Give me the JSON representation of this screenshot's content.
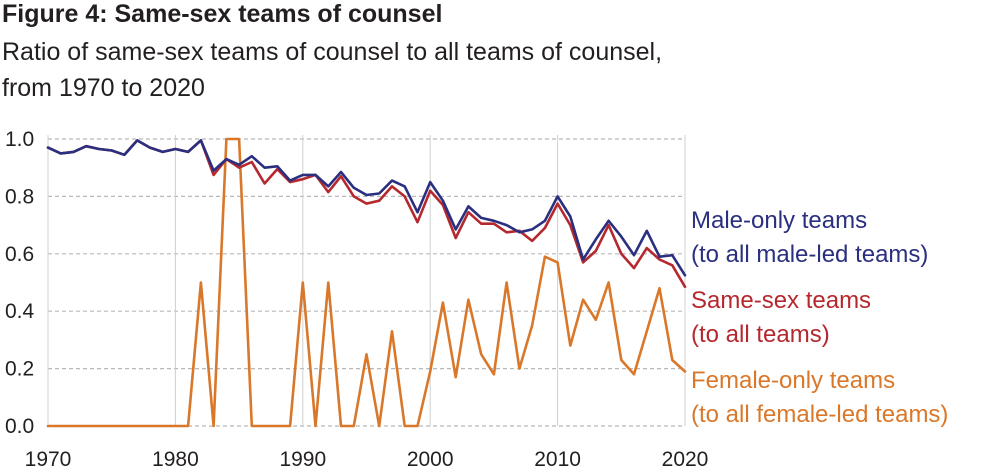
{
  "figure": {
    "title": "Figure 4: Same-sex teams of counsel",
    "subtitle_line1": "Ratio of same-sex teams of counsel to all teams of counsel,",
    "subtitle_line2": "from 1970 to 2020"
  },
  "chart_data": {
    "type": "line",
    "title": "Figure 4: Same-sex teams of counsel",
    "subtitle": "Ratio of same-sex teams of counsel to all teams of counsel, from 1970 to 2020",
    "xlabel": "",
    "ylabel": "",
    "xlim": [
      1970,
      2020
    ],
    "ylim": [
      0,
      1.0
    ],
    "x_ticks": [
      "1970",
      "1980",
      "1990",
      "2000",
      "2010",
      "2020"
    ],
    "y_ticks": [
      "0.0",
      "0.2",
      "0.4",
      "0.6",
      "0.8",
      "1.0"
    ],
    "grid": "horizontal dashed",
    "legend": "right, labels next to line ends",
    "x": [
      1970,
      1971,
      1972,
      1973,
      1974,
      1975,
      1976,
      1977,
      1978,
      1979,
      1980,
      1981,
      1982,
      1983,
      1984,
      1985,
      1986,
      1987,
      1988,
      1989,
      1990,
      1991,
      1992,
      1993,
      1994,
      1995,
      1996,
      1997,
      1998,
      1999,
      2000,
      2001,
      2002,
      2003,
      2004,
      2005,
      2006,
      2007,
      2008,
      2009,
      2010,
      2011,
      2012,
      2013,
      2014,
      2015,
      2016,
      2017,
      2018,
      2019,
      2020
    ],
    "series": [
      {
        "name_line1": "Male-only teams",
        "name_line2": "(to all male-led teams)",
        "color": "#2a2f7f",
        "values": [
          0.97,
          0.95,
          0.955,
          0.975,
          0.965,
          0.96,
          0.945,
          0.995,
          0.97,
          0.955,
          0.965,
          0.955,
          0.995,
          0.89,
          0.93,
          0.91,
          0.94,
          0.9,
          0.905,
          0.855,
          0.875,
          0.875,
          0.835,
          0.885,
          0.83,
          0.805,
          0.81,
          0.855,
          0.835,
          0.745,
          0.85,
          0.785,
          0.685,
          0.765,
          0.725,
          0.715,
          0.7,
          0.675,
          0.685,
          0.715,
          0.8,
          0.73,
          0.58,
          0.65,
          0.715,
          0.66,
          0.595,
          0.68,
          0.59,
          0.595,
          0.525
        ]
      },
      {
        "name_line1": "Same-sex teams",
        "name_line2": "(to all teams)",
        "color": "#b5282e",
        "values": [
          0.97,
          0.95,
          0.955,
          0.975,
          0.965,
          0.96,
          0.945,
          0.995,
          0.97,
          0.955,
          0.965,
          0.955,
          0.995,
          0.875,
          0.93,
          0.9,
          0.92,
          0.845,
          0.895,
          0.85,
          0.86,
          0.875,
          0.815,
          0.87,
          0.8,
          0.775,
          0.785,
          0.835,
          0.8,
          0.71,
          0.82,
          0.77,
          0.655,
          0.745,
          0.705,
          0.705,
          0.675,
          0.68,
          0.645,
          0.69,
          0.775,
          0.7,
          0.57,
          0.61,
          0.7,
          0.6,
          0.55,
          0.62,
          0.58,
          0.56,
          0.485
        ]
      },
      {
        "name_line1": "Female-only teams",
        "name_line2": "(to all female-led teams)",
        "color": "#d9782b",
        "values": [
          0,
          0,
          0,
          0,
          0,
          0,
          0,
          0,
          0,
          0,
          0,
          0,
          0.5,
          0,
          1.0,
          1.0,
          0,
          0,
          0,
          0,
          0.5,
          0,
          0.5,
          0,
          0,
          0.25,
          0,
          0.33,
          0,
          0,
          0.19,
          0.43,
          0.17,
          0.44,
          0.25,
          0.18,
          0.5,
          0.2,
          0.35,
          0.59,
          0.57,
          0.28,
          0.44,
          0.37,
          0.5,
          0.23,
          0.18,
          0.33,
          0.48,
          0.23,
          0.19
        ]
      }
    ]
  }
}
